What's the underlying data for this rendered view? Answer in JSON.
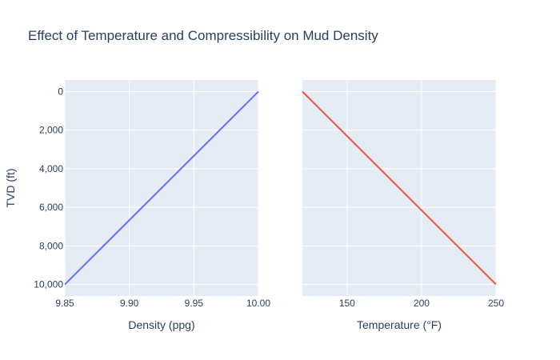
{
  "chart_data": {
    "type": "line",
    "title": "Effect of Temperature and Compressibility on Mud Density",
    "ylabel": "TVD (ft)",
    "shared_y": {
      "ylim": [
        10600,
        -600
      ],
      "reversed": true,
      "ticks": [
        0,
        2000,
        4000,
        6000,
        8000,
        10000
      ],
      "tick_labels": [
        "0",
        "2,000",
        "4,000",
        "6,000",
        "8,000",
        "10,000"
      ]
    },
    "grid": true,
    "panels": [
      {
        "xlabel": "Density (ppg)",
        "xlim": [
          9.85,
          10.0
        ],
        "xticks": [
          9.85,
          9.9,
          9.95,
          10.0
        ],
        "xtick_labels": [
          "9.85",
          "9.90",
          "9.95",
          "10.00"
        ],
        "series": [
          {
            "color": "#636efa",
            "x": [
              10.0,
              9.85
            ],
            "y": [
              0,
              10000
            ]
          }
        ]
      },
      {
        "xlabel": "Temperature (°F)",
        "xlim": [
          120,
          250
        ],
        "xticks": [
          150,
          200,
          250
        ],
        "xtick_labels": [
          "150",
          "200",
          "250"
        ],
        "series": [
          {
            "color": "#ef553b",
            "x": [
              120,
              250
            ],
            "y": [
              0,
              10000
            ]
          }
        ]
      }
    ]
  }
}
